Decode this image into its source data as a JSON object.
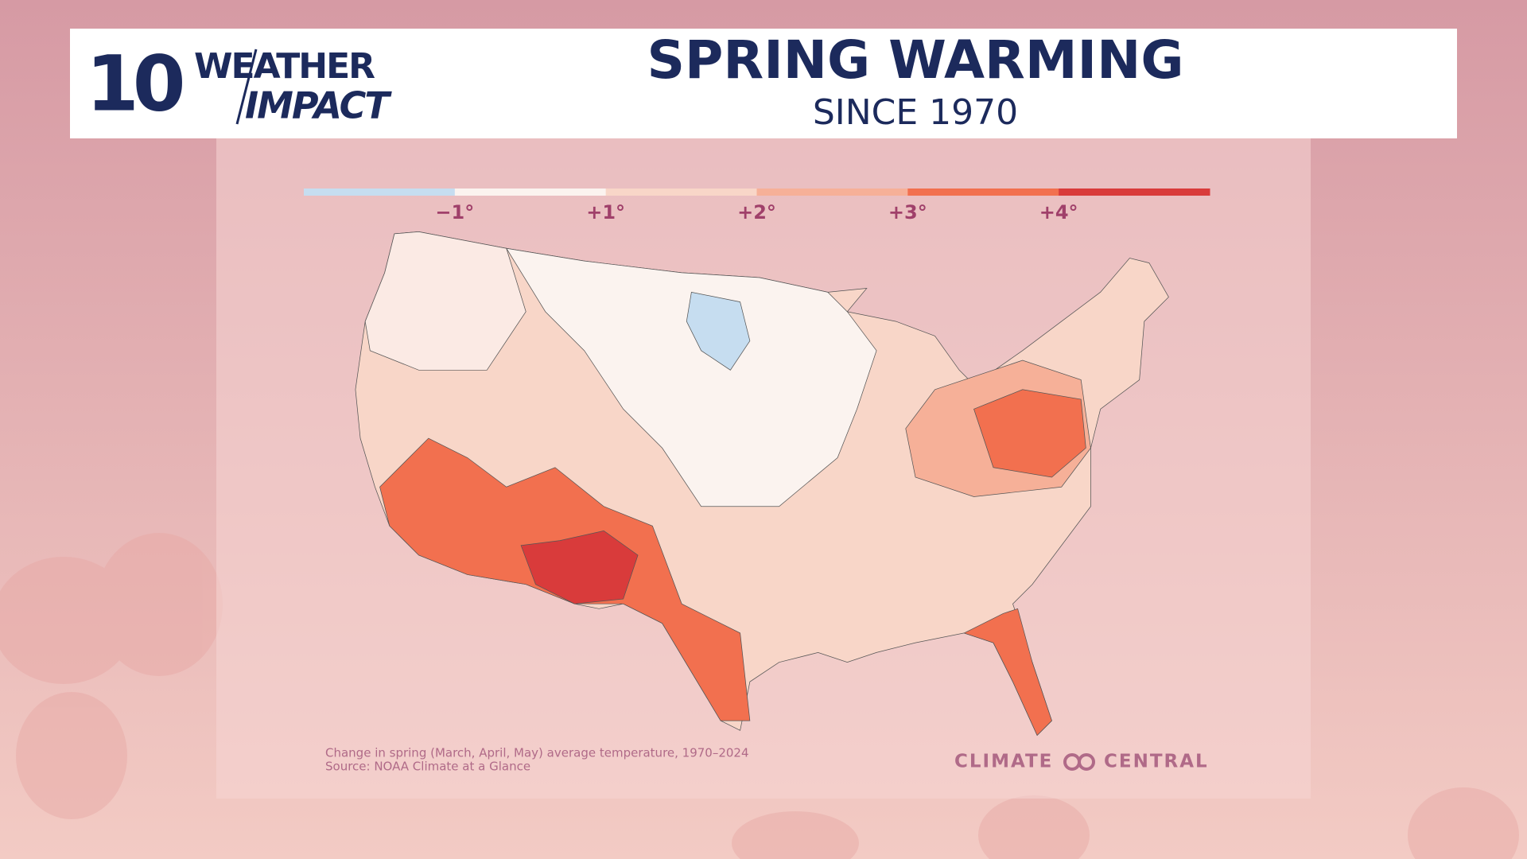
{
  "header": {
    "logo": {
      "number": "10",
      "line1": "WEATHER",
      "line2": "IMPACT"
    },
    "title": "SPRING WARMING",
    "subtitle": "SINCE 1970"
  },
  "legend": {
    "colors": [
      "#c6ddf0",
      "#fbf3ef",
      "#f8d6c8",
      "#f6b098",
      "#f2704f",
      "#d93b3b"
    ],
    "labels": [
      "−1°",
      "+1°",
      "+2°",
      "+3°",
      "+4°"
    ]
  },
  "caption": {
    "line1": "Change in spring (March, April, May) average temperature, 1970–2024",
    "line2": "Source: NOAA Climate at a Glance"
  },
  "credit": {
    "left": "CLIMATE",
    "right": "CENTRAL"
  }
}
